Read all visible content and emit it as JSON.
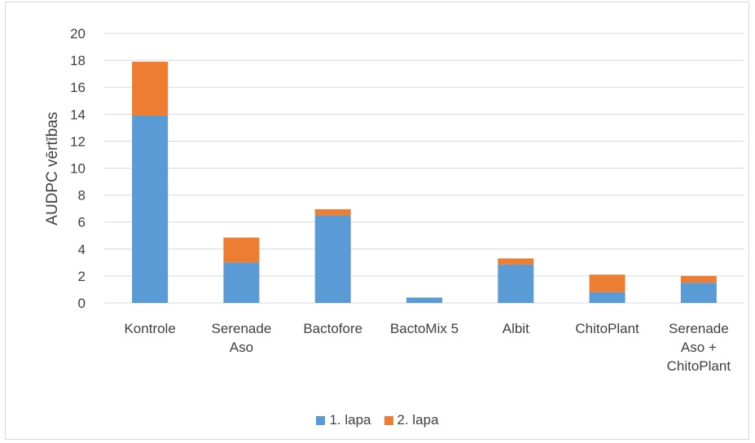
{
  "chart_data": {
    "type": "bar",
    "stacked": true,
    "categories": [
      [
        "Kontrole"
      ],
      [
        "Serenade",
        "Aso"
      ],
      [
        "Bactofore"
      ],
      [
        "BactoMix 5"
      ],
      [
        "Albit"
      ],
      [
        "ChitoPlant"
      ],
      [
        "Serenade",
        "Aso +",
        "ChitoPlant"
      ]
    ],
    "series": [
      {
        "name": "1. lapa",
        "color": "#5b9bd5",
        "values": [
          13.9,
          3.0,
          6.5,
          0.4,
          2.85,
          0.8,
          1.5
        ]
      },
      {
        "name": "2. lapa",
        "color": "#ed7d31",
        "values": [
          4.0,
          1.85,
          0.45,
          0.0,
          0.45,
          1.3,
          0.5
        ]
      }
    ],
    "ylabel": "AUDPC vērtības",
    "ylim": [
      0,
      20
    ],
    "yticks": [
      0,
      2,
      4,
      6,
      8,
      10,
      12,
      14,
      16,
      18,
      20
    ],
    "grid": true,
    "legend_position": "bottom"
  }
}
